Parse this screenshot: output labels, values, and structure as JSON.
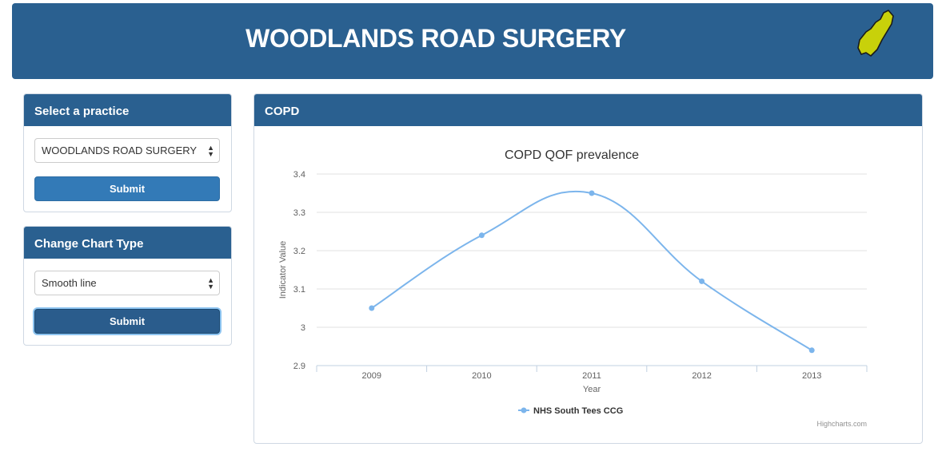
{
  "header": {
    "title": "WOODLANDS ROAD SURGERY",
    "brand_color": "#2a6090",
    "logo_icon": "region-map-icon",
    "logo_color": "#c8d10a"
  },
  "practice_panel": {
    "heading": "Select a practice",
    "selected": "WOODLANDS ROAD SURGERY",
    "submit_label": "Submit"
  },
  "chart_type_panel": {
    "heading": "Change Chart Type",
    "selected": "Smooth line",
    "submit_label": "Submit"
  },
  "chart_panel": {
    "heading": "COPD",
    "credit": "Highcharts.com"
  },
  "chart_data": {
    "type": "line",
    "title": "COPD QOF prevalence",
    "xlabel": "Year",
    "ylabel": "Indicator Value",
    "categories": [
      "2009",
      "2010",
      "2011",
      "2012",
      "2013"
    ],
    "y_ticks": [
      "2.9",
      "3",
      "3.1",
      "3.2",
      "3.3",
      "3.4"
    ],
    "ylim": [
      2.9,
      3.4
    ],
    "grid": true,
    "legend_position": "bottom-center",
    "series": [
      {
        "name": "NHS South Tees CCG",
        "color": "#7cb5ec",
        "values": [
          3.05,
          3.24,
          3.35,
          3.12,
          2.94
        ]
      }
    ]
  }
}
